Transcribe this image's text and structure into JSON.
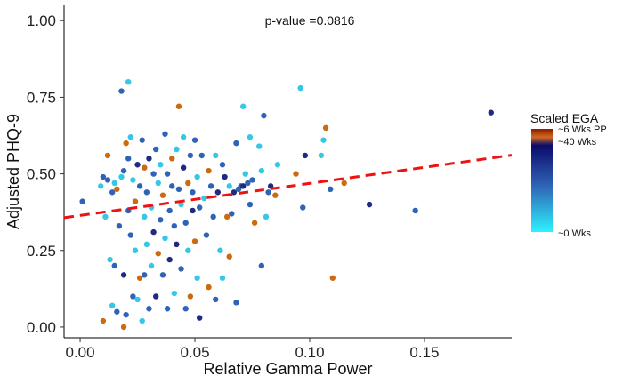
{
  "chart_data": {
    "type": "scatter",
    "title": "",
    "xlabel": "Relative Gamma Power",
    "ylabel": "Adjusted PHQ-9",
    "xlim": [
      -0.007,
      0.188
    ],
    "ylim": [
      -0.035,
      1.05
    ],
    "xticks": [
      0.0,
      0.05,
      0.1,
      0.15
    ],
    "xtick_labels": [
      "0.00",
      "0.05",
      "0.10",
      "0.15"
    ],
    "yticks": [
      0.0,
      0.25,
      0.5,
      0.75,
      1.0
    ],
    "ytick_labels": [
      "0.00",
      "0.25",
      "0.50",
      "0.75",
      "1.00"
    ],
    "grid": false,
    "annotation": "p-value =0.0816",
    "trendline": {
      "style": "dashed",
      "color": "#ee1111",
      "x": [
        -0.007,
        0.188
      ],
      "y": [
        0.357,
        0.561
      ]
    },
    "legend": {
      "title": "Scaled EGA",
      "placement": "right",
      "labels": [
        "~6 Wks PP",
        "~40 Wks",
        "~0 Wks"
      ],
      "gradient": [
        {
          "stop": 0.0,
          "color": "#8b1a00"
        },
        {
          "stop": 0.08,
          "color": "#d2691e"
        },
        {
          "stop": 0.16,
          "color": "#0b0b6b"
        },
        {
          "stop": 0.55,
          "color": "#2f63b5"
        },
        {
          "stop": 1.0,
          "color": "#2ef2ff"
        }
      ]
    },
    "colors": {
      "cyan": "#35c8e6",
      "blue": "#2f63b5",
      "navy": "#1f2a80",
      "orange": "#cc6a10"
    },
    "points": [
      {
        "x": 0.001,
        "y": 0.41,
        "c": "blue"
      },
      {
        "x": 0.009,
        "y": 0.46,
        "c": "cyan"
      },
      {
        "x": 0.01,
        "y": 0.49,
        "c": "blue"
      },
      {
        "x": 0.01,
        "y": 0.02,
        "c": "orange"
      },
      {
        "x": 0.011,
        "y": 0.36,
        "c": "cyan"
      },
      {
        "x": 0.012,
        "y": 0.48,
        "c": "blue"
      },
      {
        "x": 0.012,
        "y": 0.56,
        "c": "orange"
      },
      {
        "x": 0.013,
        "y": 0.22,
        "c": "cyan"
      },
      {
        "x": 0.014,
        "y": 0.44,
        "c": "blue"
      },
      {
        "x": 0.014,
        "y": 0.07,
        "c": "cyan"
      },
      {
        "x": 0.015,
        "y": 0.47,
        "c": "cyan"
      },
      {
        "x": 0.015,
        "y": 0.2,
        "c": "blue"
      },
      {
        "x": 0.016,
        "y": 0.05,
        "c": "blue"
      },
      {
        "x": 0.016,
        "y": 0.45,
        "c": "orange"
      },
      {
        "x": 0.017,
        "y": 0.33,
        "c": "blue"
      },
      {
        "x": 0.018,
        "y": 0.77,
        "c": "blue"
      },
      {
        "x": 0.018,
        "y": 0.49,
        "c": "cyan"
      },
      {
        "x": 0.019,
        "y": 0.51,
        "c": "blue"
      },
      {
        "x": 0.019,
        "y": 0.0,
        "c": "orange"
      },
      {
        "x": 0.019,
        "y": 0.17,
        "c": "navy"
      },
      {
        "x": 0.02,
        "y": 0.6,
        "c": "orange"
      },
      {
        "x": 0.02,
        "y": 0.04,
        "c": "blue"
      },
      {
        "x": 0.021,
        "y": 0.38,
        "c": "blue"
      },
      {
        "x": 0.021,
        "y": 0.8,
        "c": "cyan"
      },
      {
        "x": 0.021,
        "y": 0.55,
        "c": "blue"
      },
      {
        "x": 0.022,
        "y": 0.62,
        "c": "cyan"
      },
      {
        "x": 0.022,
        "y": 0.3,
        "c": "blue"
      },
      {
        "x": 0.023,
        "y": 0.48,
        "c": "cyan"
      },
      {
        "x": 0.023,
        "y": 0.1,
        "c": "blue"
      },
      {
        "x": 0.024,
        "y": 0.25,
        "c": "cyan"
      },
      {
        "x": 0.024,
        "y": 0.41,
        "c": "orange"
      },
      {
        "x": 0.025,
        "y": 0.53,
        "c": "navy"
      },
      {
        "x": 0.025,
        "y": 0.09,
        "c": "cyan"
      },
      {
        "x": 0.026,
        "y": 0.46,
        "c": "blue"
      },
      {
        "x": 0.026,
        "y": 0.16,
        "c": "orange"
      },
      {
        "x": 0.027,
        "y": 0.02,
        "c": "cyan"
      },
      {
        "x": 0.027,
        "y": 0.61,
        "c": "blue"
      },
      {
        "x": 0.028,
        "y": 0.36,
        "c": "cyan"
      },
      {
        "x": 0.028,
        "y": 0.52,
        "c": "orange"
      },
      {
        "x": 0.028,
        "y": 0.17,
        "c": "blue"
      },
      {
        "x": 0.029,
        "y": 0.27,
        "c": "cyan"
      },
      {
        "x": 0.029,
        "y": 0.44,
        "c": "blue"
      },
      {
        "x": 0.03,
        "y": 0.06,
        "c": "blue"
      },
      {
        "x": 0.03,
        "y": 0.55,
        "c": "navy"
      },
      {
        "x": 0.031,
        "y": 0.2,
        "c": "cyan"
      },
      {
        "x": 0.031,
        "y": 0.39,
        "c": "cyan"
      },
      {
        "x": 0.032,
        "y": 0.5,
        "c": "blue"
      },
      {
        "x": 0.032,
        "y": 0.31,
        "c": "navy"
      },
      {
        "x": 0.033,
        "y": 0.58,
        "c": "blue"
      },
      {
        "x": 0.033,
        "y": 0.1,
        "c": "navy"
      },
      {
        "x": 0.034,
        "y": 0.24,
        "c": "orange"
      },
      {
        "x": 0.034,
        "y": 0.47,
        "c": "cyan"
      },
      {
        "x": 0.035,
        "y": 0.35,
        "c": "blue"
      },
      {
        "x": 0.035,
        "y": 0.53,
        "c": "cyan"
      },
      {
        "x": 0.036,
        "y": 0.17,
        "c": "blue"
      },
      {
        "x": 0.036,
        "y": 0.43,
        "c": "orange"
      },
      {
        "x": 0.037,
        "y": 0.63,
        "c": "blue"
      },
      {
        "x": 0.037,
        "y": 0.29,
        "c": "cyan"
      },
      {
        "x": 0.038,
        "y": 0.5,
        "c": "blue"
      },
      {
        "x": 0.038,
        "y": 0.06,
        "c": "blue"
      },
      {
        "x": 0.039,
        "y": 0.38,
        "c": "blue"
      },
      {
        "x": 0.039,
        "y": 0.22,
        "c": "navy"
      },
      {
        "x": 0.04,
        "y": 0.55,
        "c": "orange"
      },
      {
        "x": 0.04,
        "y": 0.46,
        "c": "blue"
      },
      {
        "x": 0.041,
        "y": 0.11,
        "c": "cyan"
      },
      {
        "x": 0.041,
        "y": 0.33,
        "c": "blue"
      },
      {
        "x": 0.042,
        "y": 0.58,
        "c": "cyan"
      },
      {
        "x": 0.042,
        "y": 0.27,
        "c": "navy"
      },
      {
        "x": 0.043,
        "y": 0.45,
        "c": "blue"
      },
      {
        "x": 0.043,
        "y": 0.72,
        "c": "orange"
      },
      {
        "x": 0.044,
        "y": 0.19,
        "c": "blue"
      },
      {
        "x": 0.044,
        "y": 0.4,
        "c": "cyan"
      },
      {
        "x": 0.045,
        "y": 0.52,
        "c": "navy"
      },
      {
        "x": 0.045,
        "y": 0.62,
        "c": "cyan"
      },
      {
        "x": 0.046,
        "y": 0.34,
        "c": "blue"
      },
      {
        "x": 0.046,
        "y": 0.06,
        "c": "blue"
      },
      {
        "x": 0.047,
        "y": 0.47,
        "c": "orange"
      },
      {
        "x": 0.047,
        "y": 0.25,
        "c": "cyan"
      },
      {
        "x": 0.048,
        "y": 0.56,
        "c": "blue"
      },
      {
        "x": 0.048,
        "y": 0.1,
        "c": "orange"
      },
      {
        "x": 0.049,
        "y": 0.38,
        "c": "navy"
      },
      {
        "x": 0.049,
        "y": 0.44,
        "c": "blue"
      },
      {
        "x": 0.05,
        "y": 0.61,
        "c": "blue"
      },
      {
        "x": 0.05,
        "y": 0.28,
        "c": "orange"
      },
      {
        "x": 0.051,
        "y": 0.16,
        "c": "cyan"
      },
      {
        "x": 0.051,
        "y": 0.49,
        "c": "cyan"
      },
      {
        "x": 0.052,
        "y": 0.03,
        "c": "navy"
      },
      {
        "x": 0.052,
        "y": 0.39,
        "c": "blue"
      },
      {
        "x": 0.053,
        "y": 0.56,
        "c": "blue"
      },
      {
        "x": 0.054,
        "y": 0.42,
        "c": "cyan"
      },
      {
        "x": 0.055,
        "y": 0.3,
        "c": "blue"
      },
      {
        "x": 0.056,
        "y": 0.51,
        "c": "orange"
      },
      {
        "x": 0.056,
        "y": 0.13,
        "c": "orange"
      },
      {
        "x": 0.057,
        "y": 0.46,
        "c": "blue"
      },
      {
        "x": 0.058,
        "y": 0.36,
        "c": "blue"
      },
      {
        "x": 0.059,
        "y": 0.56,
        "c": "cyan"
      },
      {
        "x": 0.059,
        "y": 0.09,
        "c": "blue"
      },
      {
        "x": 0.06,
        "y": 0.44,
        "c": "navy"
      },
      {
        "x": 0.061,
        "y": 0.25,
        "c": "cyan"
      },
      {
        "x": 0.062,
        "y": 0.53,
        "c": "blue"
      },
      {
        "x": 0.062,
        "y": 0.16,
        "c": "cyan"
      },
      {
        "x": 0.063,
        "y": 0.49,
        "c": "navy"
      },
      {
        "x": 0.064,
        "y": 0.36,
        "c": "orange"
      },
      {
        "x": 0.065,
        "y": 0.46,
        "c": "cyan"
      },
      {
        "x": 0.065,
        "y": 0.23,
        "c": "orange"
      },
      {
        "x": 0.066,
        "y": 0.37,
        "c": "blue"
      },
      {
        "x": 0.067,
        "y": 0.44,
        "c": "navy"
      },
      {
        "x": 0.068,
        "y": 0.6,
        "c": "blue"
      },
      {
        "x": 0.068,
        "y": 0.08,
        "c": "blue"
      },
      {
        "x": 0.069,
        "y": 0.45,
        "c": "blue"
      },
      {
        "x": 0.07,
        "y": 0.46,
        "c": "blue"
      },
      {
        "x": 0.071,
        "y": 0.72,
        "c": "cyan"
      },
      {
        "x": 0.071,
        "y": 0.46,
        "c": "navy"
      },
      {
        "x": 0.072,
        "y": 0.5,
        "c": "cyan"
      },
      {
        "x": 0.073,
        "y": 0.47,
        "c": "blue"
      },
      {
        "x": 0.074,
        "y": 0.4,
        "c": "blue"
      },
      {
        "x": 0.074,
        "y": 0.62,
        "c": "cyan"
      },
      {
        "x": 0.075,
        "y": 0.48,
        "c": "blue"
      },
      {
        "x": 0.076,
        "y": 0.34,
        "c": "orange"
      },
      {
        "x": 0.078,
        "y": 0.59,
        "c": "cyan"
      },
      {
        "x": 0.079,
        "y": 0.51,
        "c": "cyan"
      },
      {
        "x": 0.079,
        "y": 0.2,
        "c": "blue"
      },
      {
        "x": 0.08,
        "y": 0.69,
        "c": "blue"
      },
      {
        "x": 0.081,
        "y": 0.36,
        "c": "cyan"
      },
      {
        "x": 0.082,
        "y": 0.44,
        "c": "blue"
      },
      {
        "x": 0.083,
        "y": 0.46,
        "c": "navy"
      },
      {
        "x": 0.085,
        "y": 0.43,
        "c": "orange"
      },
      {
        "x": 0.086,
        "y": 0.53,
        "c": "cyan"
      },
      {
        "x": 0.094,
        "y": 0.5,
        "c": "orange"
      },
      {
        "x": 0.096,
        "y": 0.78,
        "c": "cyan"
      },
      {
        "x": 0.097,
        "y": 0.39,
        "c": "blue"
      },
      {
        "x": 0.098,
        "y": 0.56,
        "c": "navy"
      },
      {
        "x": 0.105,
        "y": 0.56,
        "c": "cyan"
      },
      {
        "x": 0.106,
        "y": 0.61,
        "c": "cyan"
      },
      {
        "x": 0.107,
        "y": 0.65,
        "c": "orange"
      },
      {
        "x": 0.109,
        "y": 0.45,
        "c": "blue"
      },
      {
        "x": 0.11,
        "y": 0.16,
        "c": "orange"
      },
      {
        "x": 0.115,
        "y": 0.47,
        "c": "orange"
      },
      {
        "x": 0.126,
        "y": 0.4,
        "c": "navy"
      },
      {
        "x": 0.146,
        "y": 0.38,
        "c": "blue"
      },
      {
        "x": 0.179,
        "y": 0.7,
        "c": "navy"
      }
    ]
  }
}
